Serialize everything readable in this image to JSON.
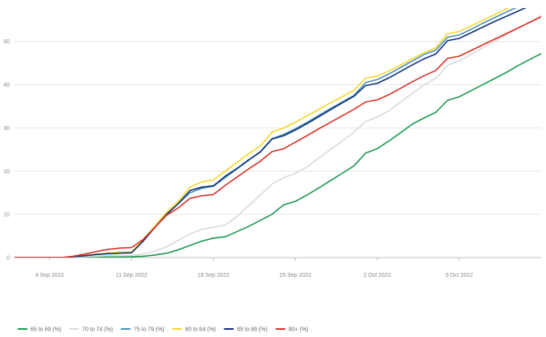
{
  "chart_data": {
    "type": "line",
    "title": "",
    "xlabel": "",
    "ylabel": "",
    "grid": true,
    "legend_position": "bottom-left",
    "ylim": [
      0,
      57
    ],
    "xlim": [
      0,
      45
    ],
    "x": [
      0,
      1,
      2,
      3,
      4,
      5,
      6,
      7,
      8,
      9,
      10,
      11,
      12,
      13,
      14,
      15,
      16,
      17,
      18,
      19,
      20,
      21,
      22,
      23,
      24,
      25,
      26,
      27,
      28,
      29,
      30,
      31,
      32,
      33,
      34,
      35,
      36,
      37,
      38,
      39,
      40,
      41,
      42,
      43,
      44,
      45
    ],
    "x_ticks": [
      {
        "x": 3,
        "label": "4 Sep 2022"
      },
      {
        "x": 10,
        "label": "11 Sep 2022"
      },
      {
        "x": 17,
        "label": "18 Sep 2022"
      },
      {
        "x": 24,
        "label": "25 Sep 2022"
      },
      {
        "x": 31,
        "label": "2 Oct 2022"
      },
      {
        "x": 38,
        "label": "9 Oct 2022"
      }
    ],
    "y_ticks": [
      0,
      10,
      20,
      30,
      40,
      50
    ],
    "series": [
      {
        "name": "65 to 69 (%)",
        "color": "#1a9850",
        "values": [
          0,
          0,
          0,
          0,
          0,
          0.05,
          0.1,
          0.1,
          0.15,
          0.15,
          0.2,
          0.3,
          0.6,
          1.0,
          1.8,
          2.8,
          3.8,
          4.5,
          4.8,
          6.0,
          7.2,
          8.6,
          10.0,
          12.2,
          13.0,
          14.5,
          16.1,
          17.8,
          19.5,
          21.2,
          24.2,
          25.2,
          27.0,
          28.9,
          30.9,
          32.3,
          33.6,
          36.4,
          37.2,
          38.6,
          40.0,
          41.4,
          42.8,
          44.4,
          45.8,
          47.2
        ]
      },
      {
        "name": "70 to 74 (%)",
        "color": "#d9d9d9",
        "values": [
          0,
          0,
          0,
          0,
          0,
          0.1,
          0.2,
          0.3,
          0.4,
          0.4,
          0.5,
          0.8,
          1.5,
          2.5,
          4.0,
          5.5,
          6.5,
          7.0,
          7.5,
          9.5,
          12.0,
          14.5,
          17.0,
          18.5,
          19.5,
          21.0,
          23.0,
          25.0,
          27.0,
          29.0,
          31.5,
          32.5,
          34.0,
          36.0,
          38.0,
          40.0,
          41.5,
          44.5,
          45.5,
          47.0,
          48.5,
          50.0,
          51.5,
          53.0,
          54.5,
          56.0
        ]
      },
      {
        "name": "75 to 79 (%)",
        "color": "#4a90b8",
        "values": [
          0,
          0,
          0,
          0,
          0,
          0.2,
          0.5,
          0.8,
          1.0,
          1.2,
          1.3,
          4.0,
          7.0,
          10.0,
          12.5,
          15.0,
          16.0,
          16.5,
          18.5,
          20.5,
          22.5,
          24.5,
          27.5,
          28.5,
          29.8,
          31.3,
          32.9,
          34.5,
          36.0,
          37.5,
          40.5,
          41.2,
          42.5,
          44.0,
          45.5,
          47.0,
          48.0,
          51.0,
          51.5,
          52.8,
          54.2,
          55.5,
          56.8,
          58.0,
          59.2,
          60.5
        ]
      },
      {
        "name": "80 to 84 (%)",
        "color": "#f5d626",
        "values": [
          0,
          0,
          0,
          0,
          0,
          0.2,
          0.5,
          0.8,
          1.0,
          1.2,
          1.3,
          4.2,
          7.3,
          10.5,
          13.0,
          16.3,
          17.5,
          18.0,
          20.0,
          22.0,
          24.0,
          25.8,
          29.0,
          30.0,
          31.3,
          32.8,
          34.3,
          35.8,
          37.2,
          38.7,
          41.5,
          42.0,
          43.2,
          44.6,
          46.0,
          47.4,
          48.5,
          51.8,
          52.3,
          53.6,
          54.9,
          56.2,
          57.5,
          58.8,
          60.0,
          61.2
        ]
      },
      {
        "name": "85 to 89 (%)",
        "color": "#0d2f7a",
        "values": [
          0,
          0,
          0,
          0,
          0,
          0.2,
          0.4,
          0.7,
          0.9,
          1.0,
          1.1,
          3.8,
          7.0,
          10.0,
          12.5,
          15.5,
          16.3,
          16.6,
          18.8,
          20.6,
          22.6,
          24.4,
          27.4,
          28.2,
          29.5,
          31.0,
          32.6,
          34.2,
          35.8,
          37.3,
          39.8,
          40.3,
          41.6,
          43.1,
          44.6,
          46.0,
          47.1,
          50.2,
          50.7,
          52.0,
          53.3,
          54.6,
          55.8,
          57.0,
          58.2,
          59.4
        ]
      },
      {
        "name": "90+ (%)",
        "color": "#d73027",
        "values": [
          0,
          0,
          0,
          0,
          0,
          0.3,
          0.8,
          1.4,
          1.9,
          2.2,
          2.3,
          4.2,
          7.0,
          9.8,
          11.5,
          13.7,
          14.3,
          14.6,
          16.7,
          18.6,
          20.5,
          22.3,
          24.5,
          25.2,
          26.7,
          28.2,
          29.8,
          31.3,
          32.8,
          34.3,
          36.0,
          36.5,
          37.7,
          39.2,
          40.7,
          42.1,
          43.3,
          46.1,
          46.6,
          47.9,
          49.2,
          50.5,
          51.8,
          53.1,
          54.4,
          55.7
        ]
      }
    ]
  }
}
